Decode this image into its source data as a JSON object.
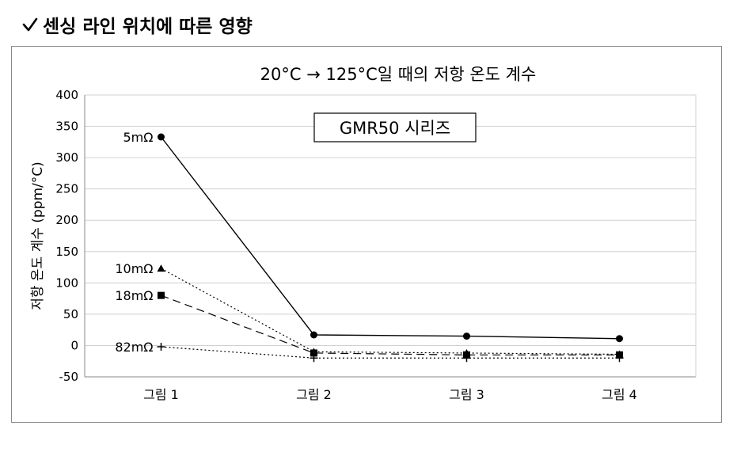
{
  "heading": "센싱 라인 위치에 따른 영향",
  "chart_data": {
    "type": "line",
    "title": "20°C → 125°C일 때의 저항 온도 계수",
    "annotation_box": "GMR50 시리즈",
    "ylabel": "저항 온도 계수 (ppm/°C)",
    "xlabel": "",
    "categories": [
      "그림 1",
      "그림 2",
      "그림 3",
      "그림 4"
    ],
    "ylim": [
      -50,
      400
    ],
    "yticks": [
      -50,
      0,
      50,
      100,
      150,
      200,
      250,
      300,
      350,
      400
    ],
    "grid": true,
    "series": [
      {
        "name": "5mΩ",
        "marker": "circle",
        "line": "solid",
        "values": [
          333,
          17,
          15,
          11
        ]
      },
      {
        "name": "10mΩ",
        "marker": "triangle",
        "line": "dotted",
        "values": [
          123,
          -10,
          -12,
          -14
        ]
      },
      {
        "name": "18mΩ",
        "marker": "square",
        "line": "dashed",
        "values": [
          80,
          -12,
          -15,
          -15
        ]
      },
      {
        "name": "82mΩ",
        "marker": "plus",
        "line": "dotted",
        "values": [
          -2,
          -20,
          -20,
          -20
        ]
      }
    ]
  }
}
